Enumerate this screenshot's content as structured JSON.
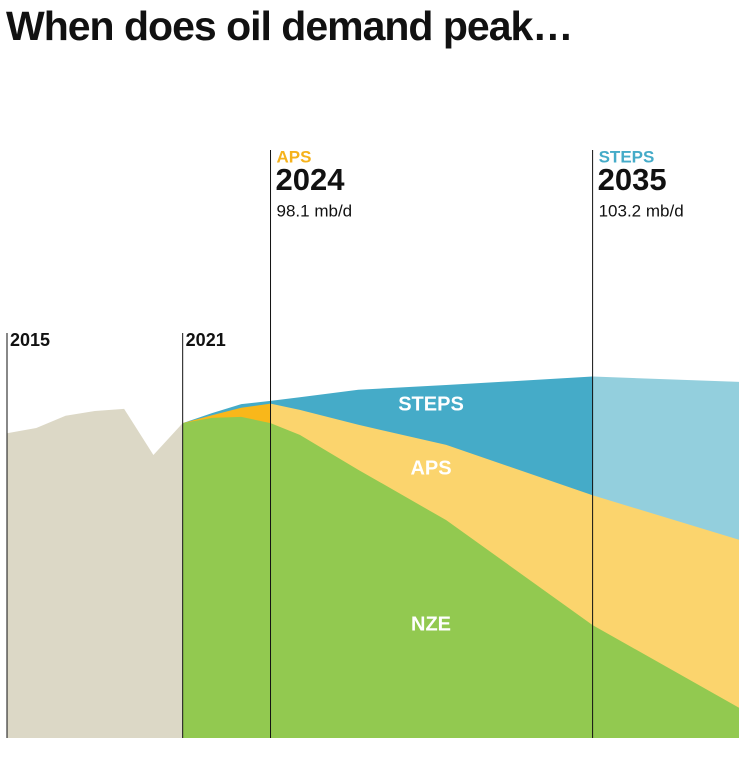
{
  "chart_data": {
    "type": "area",
    "title": "When does oil demand peak…",
    "x": [
      2015,
      2016,
      2017,
      2018,
      2019,
      2020,
      2021,
      2022,
      2023,
      2024,
      2025,
      2027,
      2030,
      2035,
      2040
    ],
    "xlim": [
      2015,
      2040
    ],
    "ylim": [
      35,
      105
    ],
    "series": [
      {
        "name": "STEPS",
        "color": "#45abc8",
        "color_after_marker": "#93cfdd",
        "values": [
          null,
          null,
          null,
          null,
          null,
          null,
          94.4,
          96.3,
          98.0,
          98.6,
          99.3,
          100.7,
          101.6,
          103.2,
          102.2
        ]
      },
      {
        "name": "APS",
        "color": "#fbd46d",
        "color_before_marker": "#f9b71a",
        "values": [
          null,
          null,
          null,
          null,
          null,
          null,
          94.4,
          95.9,
          97.3,
          98.1,
          96.9,
          94.1,
          90.3,
          80.8,
          72.4
        ]
      },
      {
        "name": "NZE",
        "color": "#92c950",
        "values": [
          null,
          null,
          null,
          null,
          null,
          null,
          94.4,
          95.4,
          95.6,
          94.4,
          92.2,
          85.6,
          76.1,
          56.3,
          40.7
        ]
      }
    ],
    "history": {
      "color": "#dcd8c6",
      "values": [
        92.5,
        93.5,
        95.8,
        96.7,
        97.1,
        88.4,
        94.4,
        null,
        null,
        null,
        null,
        null,
        null,
        null,
        null
      ]
    },
    "markers": [
      2015,
      2021
    ],
    "annotations": [
      {
        "scenario": "APS",
        "x": 2024,
        "value": {
          "value": 98.1,
          "label": "98.1 mb/d"
        },
        "color": "#f5b21c"
      },
      {
        "scenario": "STEPS",
        "x": 2035,
        "value": {
          "value": 103.2,
          "label": "103.2 mb/d"
        },
        "color": "#45abc8"
      }
    ]
  }
}
